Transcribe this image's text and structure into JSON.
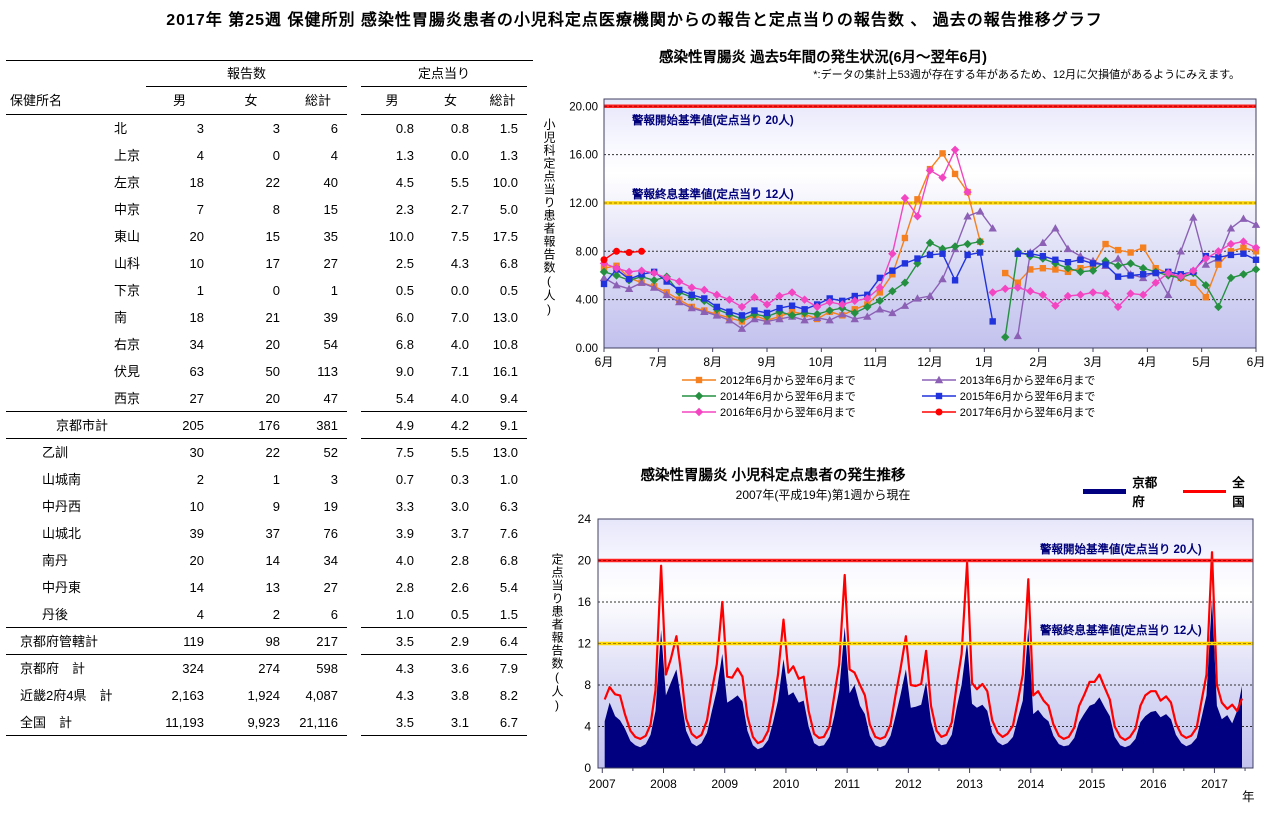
{
  "page_title": "2017年 第25週 保健所別 感染性胃腸炎患者の小児科定点医療機関からの報告と定点当りの報告数 、 過去の報告推移グラフ",
  "table": {
    "name_header": "保健所名",
    "group_headers": [
      "報告数",
      "定点当り"
    ],
    "sub_headers": [
      "男",
      "女",
      "総計",
      "男",
      "女",
      "総計"
    ],
    "rows": [
      {
        "name": "北",
        "cls": "ward-city",
        "rule": false,
        "cells": [
          "3",
          "3",
          "6",
          "0.8",
          "0.8",
          "1.5"
        ]
      },
      {
        "name": "上京",
        "cls": "ward-city",
        "rule": false,
        "cells": [
          "4",
          "0",
          "4",
          "1.3",
          "0.0",
          "1.3"
        ]
      },
      {
        "name": "左京",
        "cls": "ward-city",
        "rule": false,
        "cells": [
          "18",
          "22",
          "40",
          "4.5",
          "5.5",
          "10.0"
        ]
      },
      {
        "name": "中京",
        "cls": "ward-city",
        "rule": false,
        "cells": [
          "7",
          "8",
          "15",
          "2.3",
          "2.7",
          "5.0"
        ]
      },
      {
        "name": "東山",
        "cls": "ward-city",
        "rule": false,
        "cells": [
          "20",
          "15",
          "35",
          "10.0",
          "7.5",
          "17.5"
        ]
      },
      {
        "name": "山科",
        "cls": "ward-city",
        "rule": false,
        "cells": [
          "10",
          "17",
          "27",
          "2.5",
          "4.3",
          "6.8"
        ]
      },
      {
        "name": "下京",
        "cls": "ward-city",
        "rule": false,
        "cells": [
          "1",
          "0",
          "1",
          "0.5",
          "0.0",
          "0.5"
        ]
      },
      {
        "name": "南",
        "cls": "ward-city",
        "rule": false,
        "cells": [
          "18",
          "21",
          "39",
          "6.0",
          "7.0",
          "13.0"
        ]
      },
      {
        "name": "右京",
        "cls": "ward-city",
        "rule": false,
        "cells": [
          "34",
          "20",
          "54",
          "6.8",
          "4.0",
          "10.8"
        ]
      },
      {
        "name": "伏見",
        "cls": "ward-city",
        "rule": false,
        "cells": [
          "63",
          "50",
          "113",
          "9.0",
          "7.1",
          "16.1"
        ]
      },
      {
        "name": "西京",
        "cls": "ward-city",
        "rule": true,
        "cells": [
          "27",
          "20",
          "47",
          "5.4",
          "4.0",
          "9.4"
        ]
      },
      {
        "name": "京都市計",
        "cls": "sub-city",
        "rule": true,
        "cells": [
          "205",
          "176",
          "381",
          "4.9",
          "4.2",
          "9.1"
        ]
      },
      {
        "name": "乙訓",
        "cls": "ward-pref",
        "rule": false,
        "cells": [
          "30",
          "22",
          "52",
          "7.5",
          "5.5",
          "13.0"
        ]
      },
      {
        "name": "山城南",
        "cls": "ward-pref",
        "rule": false,
        "cells": [
          "2",
          "1",
          "3",
          "0.7",
          "0.3",
          "1.0"
        ]
      },
      {
        "name": "中丹西",
        "cls": "ward-pref",
        "rule": false,
        "cells": [
          "10",
          "9",
          "19",
          "3.3",
          "3.0",
          "6.3"
        ]
      },
      {
        "name": "山城北",
        "cls": "ward-pref",
        "rule": false,
        "cells": [
          "39",
          "37",
          "76",
          "3.9",
          "3.7",
          "7.6"
        ]
      },
      {
        "name": "南丹",
        "cls": "ward-pref",
        "rule": false,
        "cells": [
          "20",
          "14",
          "34",
          "4.0",
          "2.8",
          "6.8"
        ]
      },
      {
        "name": "中丹東",
        "cls": "ward-pref",
        "rule": false,
        "cells": [
          "14",
          "13",
          "27",
          "2.8",
          "2.6",
          "5.4"
        ]
      },
      {
        "name": "丹後",
        "cls": "ward-pref",
        "rule": true,
        "cells": [
          "4",
          "2",
          "6",
          "1.0",
          "0.5",
          "1.5"
        ]
      },
      {
        "name": "京都府管轄計",
        "cls": "total",
        "rule": true,
        "cells": [
          "119",
          "98",
          "217",
          "3.5",
          "2.9",
          "6.4"
        ]
      },
      {
        "name": "京都府　計",
        "cls": "total",
        "rule": false,
        "cells": [
          "324",
          "274",
          "598",
          "4.3",
          "3.6",
          "7.9"
        ]
      },
      {
        "name": "近畿2府4県　計",
        "cls": "total",
        "rule": false,
        "cells": [
          "2,163",
          "1,924",
          "4,087",
          "4.3",
          "3.8",
          "8.2"
        ]
      },
      {
        "name": "全国　計",
        "cls": "total",
        "rule": true,
        "cells": [
          "11,193",
          "9,923",
          "21,116",
          "3.5",
          "3.1",
          "6.7"
        ]
      }
    ]
  },
  "chart_data": [
    {
      "type": "line",
      "title": "感染性胃腸炎 過去5年間の発生状況(6月～翌年6月)",
      "note": "*:データの集計上53週が存在する年があるため、12月に欠損値があるようにみえます。",
      "ylabel": "小児科定点当り患者報告数(人)",
      "y_ticks": [
        {
          "v": 20,
          "label": "20.00"
        },
        {
          "v": 16,
          "label": "16.00"
        },
        {
          "v": 12,
          "label": "12.00"
        },
        {
          "v": 8,
          "label": "8.00"
        },
        {
          "v": 4,
          "label": "4.00"
        },
        {
          "v": 0,
          "label": "0.00"
        }
      ],
      "grid_values": [
        4,
        8,
        12,
        16
      ],
      "x_labels": [
        "6月",
        "7月",
        "8月",
        "9月",
        "10月",
        "11月",
        "12月",
        "1月",
        "2月",
        "3月",
        "4月",
        "5月",
        "6月"
      ],
      "ylim": [
        0,
        20
      ],
      "alert_start": {
        "label": "警報開始基準値(定点当り 20人)",
        "value": 20,
        "color": "#ff2222",
        "dash_color": "#b00000"
      },
      "alert_end": {
        "label": "警報終息基準値(定点当り 12人)",
        "value": 12,
        "color": "#ffd700",
        "dash_color": "#a08000"
      },
      "series": [
        {
          "label": "2012年6月から翌年6月まで",
          "color": "#f4801f",
          "marker": "sq",
          "values": [
            6.6,
            6.8,
            5.8,
            5.4,
            5.1,
            4.6,
            4.0,
            3.4,
            3.1,
            2.8,
            2.5,
            2.2,
            2.7,
            2.3,
            2.6,
            3.0,
            2.8,
            2.4,
            3.0,
            2.7,
            3.2,
            3.6,
            4.6,
            6.1,
            9.1,
            12.3,
            14.8,
            16.1,
            14.4,
            12.9,
            8.8,
            null,
            6.2,
            5.4,
            6.5,
            6.6,
            6.5,
            6.3,
            6.6,
            6.8,
            8.6,
            8.1,
            7.9,
            8.3,
            6.6,
            6.2,
            5.8,
            5.4,
            4.2,
            6.9,
            8.0,
            8.3,
            8.0
          ]
        },
        {
          "label": "2013年6月から翌年6月まで",
          "color": "#8c61b5",
          "marker": "tri",
          "values": [
            5.8,
            5.2,
            4.9,
            5.4,
            5.0,
            4.4,
            3.8,
            3.3,
            3.0,
            2.7,
            2.3,
            1.6,
            2.4,
            2.2,
            2.4,
            2.6,
            2.3,
            2.5,
            2.3,
            2.8,
            2.4,
            2.6,
            3.2,
            2.9,
            3.5,
            4.1,
            4.3,
            5.7,
            8.2,
            10.9,
            11.3,
            9.9,
            null,
            1.0,
            7.9,
            8.7,
            9.9,
            8.2,
            7.6,
            7.2,
            6.8,
            7.4,
            6.1,
            5.8,
            6.3,
            4.4,
            8.0,
            10.8,
            6.9,
            7.4,
            9.9,
            10.7,
            10.2
          ]
        },
        {
          "label": "2014年6月から翌年6月まで",
          "color": "#249040",
          "marker": "dia",
          "values": [
            6.3,
            6.0,
            5.6,
            5.9,
            5.6,
            5.9,
            4.6,
            4.2,
            3.9,
            3.2,
            2.8,
            2.4,
            2.8,
            2.6,
            3.0,
            2.7,
            2.9,
            2.8,
            3.1,
            3.3,
            2.9,
            3.4,
            3.9,
            4.7,
            5.4,
            7.0,
            8.7,
            8.2,
            8.4,
            8.6,
            8.8,
            null,
            0.9,
            8.0,
            7.6,
            7.4,
            7.0,
            6.6,
            6.3,
            6.4,
            7.2,
            6.8,
            7.0,
            6.6,
            6.3,
            6.0,
            5.8,
            6.2,
            5.2,
            3.4,
            5.8,
            6.1,
            6.5
          ]
        },
        {
          "label": "2015年6月から翌年6月まで",
          "color": "#2033dd",
          "marker": "sq",
          "values": [
            5.3,
            6.5,
            5.7,
            6.1,
            6.3,
            5.5,
            4.8,
            4.4,
            4.1,
            3.4,
            3.0,
            2.7,
            3.1,
            2.9,
            3.3,
            3.5,
            3.2,
            3.6,
            4.1,
            3.9,
            4.3,
            4.4,
            5.8,
            6.4,
            7.0,
            7.4,
            7.7,
            7.8,
            5.6,
            7.7,
            7.9,
            2.2,
            null,
            7.8,
            7.8,
            7.6,
            7.3,
            7.1,
            7.3,
            7.0,
            6.9,
            5.9,
            6.0,
            6.1,
            6.2,
            6.3,
            6.1,
            6.3,
            7.6,
            7.5,
            7.7,
            7.8,
            7.3
          ]
        },
        {
          "label": "2016年6月から翌年6月まで",
          "color": "#f345c1",
          "marker": "dia",
          "values": [
            7.0,
            6.6,
            6.3,
            6.4,
            6.2,
            5.8,
            5.5,
            5.0,
            4.8,
            4.4,
            4.0,
            3.4,
            4.2,
            3.6,
            4.3,
            4.6,
            4.0,
            3.4,
            3.8,
            3.6,
            3.9,
            4.1,
            5.0,
            7.8,
            12.4,
            10.9,
            14.7,
            14.1,
            16.4,
            12.9,
            null,
            4.6,
            4.9,
            5.0,
            4.7,
            4.4,
            3.5,
            4.3,
            4.4,
            4.6,
            4.5,
            3.4,
            4.5,
            4.4,
            5.4,
            6.2,
            5.9,
            6.4,
            7.4,
            8.0,
            8.6,
            8.8,
            8.3
          ]
        },
        {
          "label": "2017年6月から翌年6月まで",
          "color": "#ff0000",
          "marker": "cir",
          "values": [
            7.3,
            8.0,
            7.9,
            8.0,
            null,
            null,
            null,
            null,
            null,
            null,
            null,
            null,
            null,
            null,
            null,
            null,
            null,
            null,
            null,
            null,
            null,
            null,
            null,
            null,
            null,
            null,
            null,
            null,
            null,
            null,
            null,
            null,
            null,
            null,
            null,
            null,
            null,
            null,
            null,
            null,
            null,
            null,
            null,
            null,
            null,
            null,
            null,
            null,
            null,
            null,
            null,
            null,
            null
          ]
        }
      ],
      "legend_display_order": [
        0,
        2,
        4,
        1,
        3,
        5
      ]
    },
    {
      "type": "area",
      "title": "感染性胃腸炎 小児科定点患者の発生推移",
      "subtitle": "2007年(平成19年)第1週から現在",
      "ylabel": "定点当り患者報告数(人)",
      "xlabel": "年",
      "y_ticks": [
        {
          "v": 24,
          "label": "24"
        },
        {
          "v": 20,
          "label": "20"
        },
        {
          "v": 16,
          "label": "16"
        },
        {
          "v": 12,
          "label": "12"
        },
        {
          "v": 8,
          "label": "8"
        },
        {
          "v": 4,
          "label": "4"
        },
        {
          "v": 0,
          "label": "0"
        }
      ],
      "grid_values": [
        4,
        8,
        16
      ],
      "x_tick_years": [
        2007,
        2008,
        2009,
        2010,
        2011,
        2012,
        2013,
        2014,
        2015,
        2016,
        2017
      ],
      "ylim": [
        0,
        24
      ],
      "alert_start": {
        "label": "警報開始基準値(定点当り 20人)",
        "value": 20,
        "color": "#ff2222",
        "dash_color": "#b00000"
      },
      "alert_end": {
        "label": "警報終息基準値(定点当り 12人)",
        "value": 12,
        "color": "#ffd700",
        "dash_color": "#a08000"
      },
      "legend": [
        {
          "label": "京都府",
          "color": "#000080",
          "swatch": "bar"
        },
        {
          "label": "全　国",
          "color": "#ff0000",
          "swatch": "line"
        }
      ],
      "start_year": 2007,
      "x_offsets": [
        0.04,
        0.12,
        0.21,
        0.29,
        0.37,
        0.46,
        0.54,
        0.62,
        0.71,
        0.79,
        0.87,
        0.96
      ],
      "x_offsets_last_year": [
        0.04,
        0.12,
        0.21,
        0.29,
        0.37,
        0.45
      ],
      "kyoto_by_year": {
        "2007": [
          4.5,
          6.3,
          5.0,
          4.6,
          3.8,
          2.6,
          2.2,
          2.0,
          2.3,
          3.2,
          5.5,
          13.3
        ],
        "2008": [
          7.0,
          8.2,
          9.5,
          6.5,
          3.6,
          2.4,
          2.1,
          2.4,
          3.4,
          5.5,
          7.5,
          11.0
        ],
        "2009": [
          6.3,
          6.6,
          7.0,
          6.4,
          3.6,
          2.2,
          1.8,
          2.0,
          2.7,
          4.4,
          6.5,
          10.5
        ],
        "2010": [
          7.0,
          7.3,
          6.3,
          6.5,
          4.0,
          2.4,
          2.1,
          2.2,
          3.0,
          5.0,
          7.5,
          13.6
        ],
        "2011": [
          7.2,
          8.0,
          6.0,
          5.2,
          3.1,
          2.2,
          2.0,
          2.2,
          3.1,
          5.0,
          7.0,
          9.5
        ],
        "2012": [
          5.8,
          5.9,
          6.1,
          8.3,
          4.5,
          2.6,
          2.2,
          2.3,
          3.2,
          5.8,
          8.0,
          12.2
        ],
        "2013": [
          6.2,
          5.8,
          6.1,
          5.5,
          3.4,
          2.5,
          2.2,
          2.4,
          3.0,
          4.8,
          6.5,
          13.5
        ],
        "2014": [
          5.2,
          5.6,
          4.9,
          4.5,
          3.1,
          2.3,
          2.1,
          2.2,
          2.9,
          4.4,
          5.2,
          6.0
        ],
        "2015": [
          6.2,
          6.8,
          5.8,
          5.0,
          3.0,
          2.2,
          2.0,
          2.2,
          2.8,
          4.4,
          5.0,
          5.4
        ],
        "2016": [
          5.5,
          4.9,
          5.2,
          4.7,
          3.2,
          2.4,
          2.1,
          2.3,
          2.9,
          4.9,
          7.0,
          16.4
        ],
        "2017": [
          6.0,
          4.7,
          5.1,
          4.3,
          5.5,
          7.9
        ]
      },
      "national_by_year": {
        "2007": [
          6.6,
          7.8,
          7.1,
          7.0,
          5.2,
          3.6,
          3.0,
          2.8,
          3.1,
          4.2,
          7.5,
          19.5
        ],
        "2008": [
          9.0,
          10.5,
          12.7,
          9.0,
          4.8,
          3.3,
          2.9,
          3.2,
          4.6,
          7.5,
          10.0,
          16.0
        ],
        "2009": [
          8.8,
          8.7,
          9.6,
          8.8,
          5.0,
          3.0,
          2.4,
          2.6,
          3.6,
          6.0,
          9.0,
          14.3
        ],
        "2010": [
          9.2,
          9.8,
          8.6,
          8.8,
          5.5,
          3.3,
          2.9,
          3.0,
          4.0,
          7.0,
          10.0,
          18.6
        ],
        "2011": [
          9.5,
          9.2,
          8.0,
          7.0,
          4.2,
          3.0,
          2.8,
          3.0,
          4.2,
          7.0,
          9.5,
          12.7
        ],
        "2012": [
          8.0,
          7.9,
          8.1,
          11.3,
          6.0,
          3.6,
          3.0,
          3.2,
          4.4,
          8.0,
          11.0,
          19.8
        ],
        "2013": [
          8.2,
          7.6,
          8.1,
          7.4,
          4.6,
          3.4,
          3.0,
          3.3,
          4.1,
          6.5,
          9.0,
          18.2
        ],
        "2014": [
          7.0,
          7.4,
          6.5,
          6.0,
          4.2,
          3.1,
          2.8,
          3.0,
          3.9,
          6.0,
          7.0,
          8.3
        ],
        "2015": [
          8.3,
          9.0,
          7.7,
          6.6,
          4.0,
          3.0,
          2.7,
          3.0,
          3.8,
          6.0,
          7.0,
          7.4
        ],
        "2016": [
          7.4,
          6.5,
          6.9,
          6.3,
          4.3,
          3.2,
          2.9,
          3.1,
          3.9,
          6.5,
          9.0,
          20.8
        ],
        "2017": [
          8.0,
          6.3,
          5.7,
          6.1,
          5.5,
          6.7
        ]
      }
    }
  ]
}
